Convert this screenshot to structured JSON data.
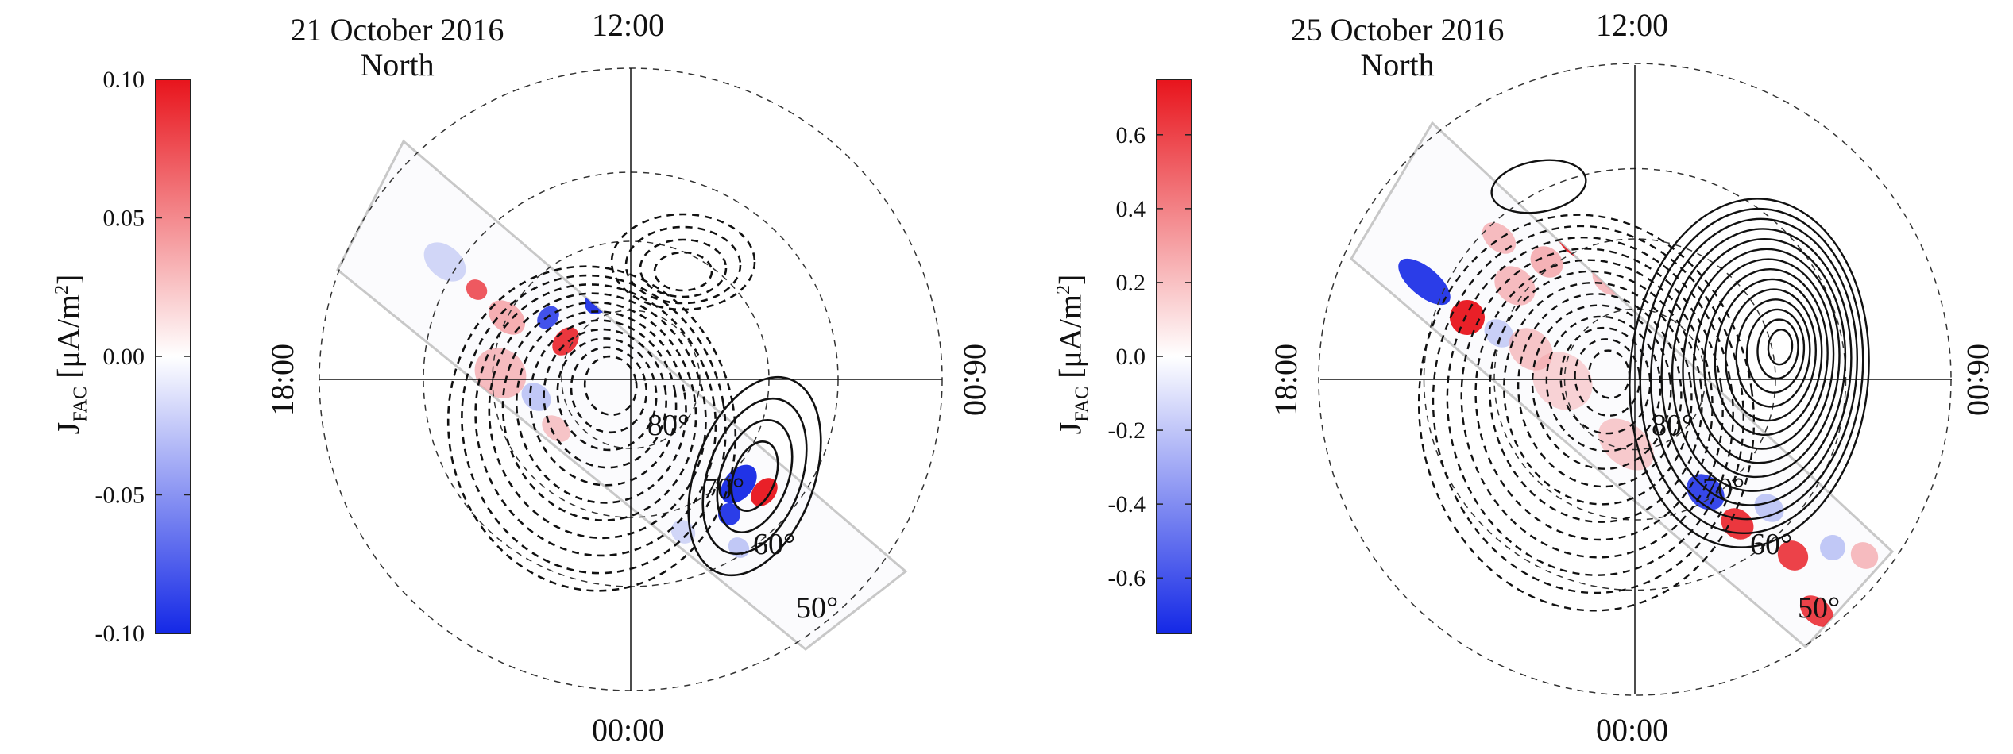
{
  "chart_data": [
    {
      "type": "heatmap",
      "title": "21 October 2016",
      "subtitle": "North",
      "ylabel_main": "J",
      "ylabel_sub": "FAC",
      "ylabel_unit": "[μA/m",
      "ylabel_sup": "2",
      "ylabel_close": "]",
      "colorbar_ticks": [
        "0.10",
        "0.05",
        "0.00",
        "-0.05",
        "-0.10"
      ],
      "colorbar_values": [
        0.1,
        0.05,
        0.0,
        -0.05,
        -0.1
      ],
      "clim": [
        -0.1,
        0.1
      ],
      "mlt_labels": {
        "top": "12:00",
        "left": "18:00",
        "right": "06:00",
        "bottom": "00:00"
      },
      "latitude_labels": [
        "80°",
        "70°",
        "60°",
        "50°"
      ],
      "latitudes": [
        80,
        70,
        60,
        50
      ],
      "colors": {
        "positive": "#e8141c",
        "negative": "#1428e6",
        "zero": "#ffffff"
      }
    },
    {
      "type": "heatmap",
      "title": "25 October 2016",
      "subtitle": "North",
      "ylabel_main": "J",
      "ylabel_sub": "FAC",
      "ylabel_unit": "[μA/m",
      "ylabel_sup": "2",
      "ylabel_close": "]",
      "colorbar_ticks": [
        "0.6",
        "0.4",
        "0.2",
        "0.0",
        "-0.2",
        "-0.4",
        "-0.6"
      ],
      "colorbar_values": [
        0.6,
        0.4,
        0.2,
        0.0,
        -0.2,
        -0.4,
        -0.6
      ],
      "clim": [
        -0.75,
        0.75
      ],
      "mlt_labels": {
        "top": "12:00",
        "left": "18:00",
        "right": "06:00",
        "bottom": "00:00"
      },
      "latitude_labels": [
        "80°",
        "70°",
        "60°",
        "50°"
      ],
      "latitudes": [
        80,
        70,
        60,
        50
      ],
      "colors": {
        "positive": "#e8141c",
        "negative": "#1428e6",
        "zero": "#ffffff"
      }
    }
  ]
}
